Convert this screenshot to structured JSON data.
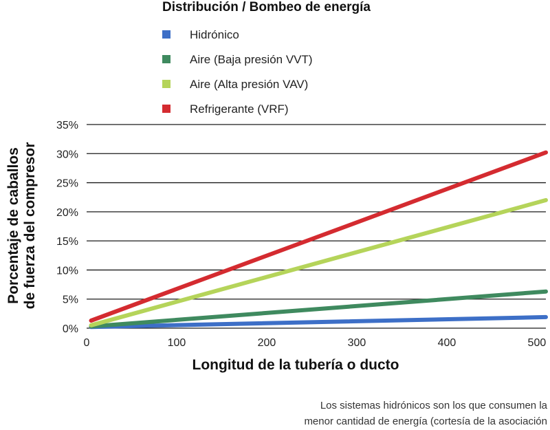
{
  "chart_data": {
    "type": "line",
    "title": "Distribución / Bombeo de energía",
    "xlabel": "Longitud de la tubería o ducto",
    "ylabel_lines": [
      "Porcentaje de caballos",
      "de fuerza del compresor"
    ],
    "xlim": [
      0,
      510
    ],
    "ylim": [
      0,
      35
    ],
    "x_ticks": [
      0,
      100,
      200,
      300,
      400,
      500
    ],
    "y_ticks": [
      0,
      5,
      10,
      15,
      20,
      25,
      30,
      35
    ],
    "y_tick_labels": [
      "0%",
      "5%",
      "10%",
      "15%",
      "20%",
      "25%",
      "30%",
      "35%"
    ],
    "grid": "horizontal",
    "legend_position": "top-left",
    "series": [
      {
        "name": "Hidrónico",
        "color": "#3d6fc7",
        "x": [
          5,
          510
        ],
        "y": [
          0.2,
          1.9
        ]
      },
      {
        "name": "Aire (Baja presión VVT)",
        "color": "#3f8a5f",
        "x": [
          5,
          510
        ],
        "y": [
          0.3,
          6.3
        ]
      },
      {
        "name": "Aire (Alta presión VAV)",
        "color": "#b5d45a",
        "x": [
          5,
          510
        ],
        "y": [
          0.5,
          22.0
        ]
      },
      {
        "name": "Refrigerante (VRF)",
        "color": "#d42b30",
        "x": [
          5,
          510
        ],
        "y": [
          1.3,
          30.2
        ]
      }
    ]
  },
  "caption_lines": [
    "Los sistemas hidrónicos son los que consumen la",
    "menor cantidad de energía (cortesía de la asociación"
  ]
}
